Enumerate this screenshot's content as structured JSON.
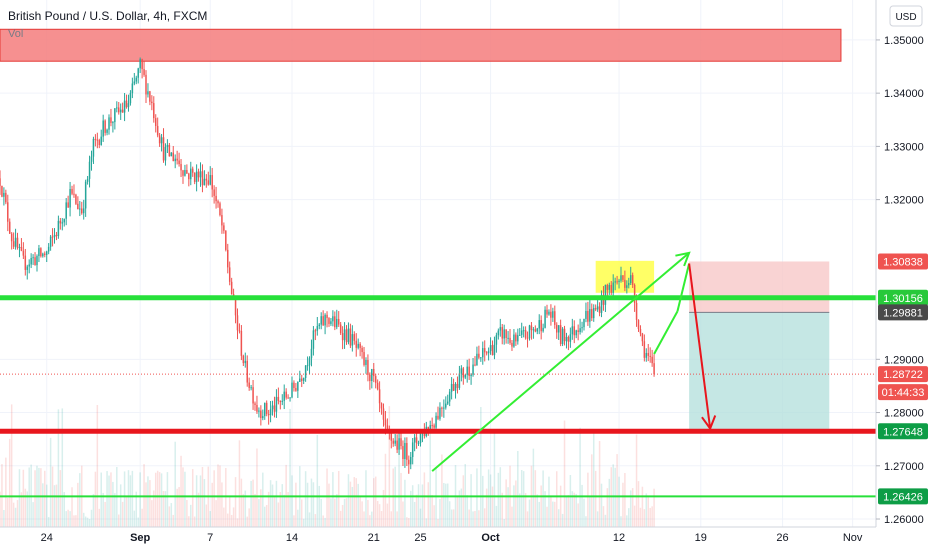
{
  "header": {
    "title": "British Pound / U.S. Dollar, 4h, FXCM",
    "volume_label": "Vol",
    "currency": "USD"
  },
  "colors": {
    "up": "#26a69a",
    "down": "#ef5350",
    "resistance_zone": "#f47c7c",
    "support_green": "#27e03a",
    "support_red": "#e8161d",
    "highlight_yellow": "#ffff33",
    "stop_zone": "#f8c8c8",
    "target_zone": "#b2dfdb",
    "arrow_green": "#33ee33",
    "arrow_red": "#e8161d",
    "grid": "#f0f3fa",
    "axis_bg": "#ffffff"
  },
  "chart_data": {
    "type": "candlestick",
    "symbol": "British Pound / U.S. Dollar",
    "interval": "4h",
    "source": "FXCM",
    "y_range": [
      1.2585,
      1.3575
    ],
    "y_ticks": [
      {
        "value": 1.35,
        "label": "1.35000"
      },
      {
        "value": 1.34,
        "label": "1.34000"
      },
      {
        "value": 1.33,
        "label": "1.33000"
      },
      {
        "value": 1.32,
        "label": "1.32000"
      },
      {
        "value": 1.29,
        "label": "1.29000"
      },
      {
        "value": 1.28,
        "label": "1.28000"
      },
      {
        "value": 1.27,
        "label": "1.27000"
      },
      {
        "value": 1.26,
        "label": "1.26000"
      }
    ],
    "x_range": [
      "2020-08-20",
      "2020-11-03"
    ],
    "x_ticks": [
      {
        "date": "2020-08-24",
        "label": "24",
        "bold": false
      },
      {
        "date": "2020-09-01",
        "label": "Sep",
        "bold": true
      },
      {
        "date": "2020-09-07",
        "label": "7",
        "bold": false
      },
      {
        "date": "2020-09-14",
        "label": "14",
        "bold": false
      },
      {
        "date": "2020-09-21",
        "label": "21",
        "bold": false
      },
      {
        "date": "2020-09-25",
        "label": "25",
        "bold": false
      },
      {
        "date": "2020-10-01",
        "label": "Oct",
        "bold": true
      },
      {
        "date": "2020-10-12",
        "label": "12",
        "bold": false
      },
      {
        "date": "2020-10-19",
        "label": "19",
        "bold": false
      },
      {
        "date": "2020-10-26",
        "label": "26",
        "bold": false
      },
      {
        "date": "2020-11-01",
        "label": "Nov",
        "bold": false
      }
    ],
    "price_path": [
      [
        "2020-08-20",
        1.324
      ],
      [
        "2020-08-21",
        1.313
      ],
      [
        "2020-08-22",
        1.308
      ],
      [
        "2020-08-24",
        1.31
      ],
      [
        "2020-08-25",
        1.315
      ],
      [
        "2020-08-26",
        1.321
      ],
      [
        "2020-08-27",
        1.318
      ],
      [
        "2020-08-28",
        1.33
      ],
      [
        "2020-08-29",
        1.334
      ],
      [
        "2020-08-31",
        1.338
      ],
      [
        "2020-09-01",
        1.345
      ],
      [
        "2020-09-02",
        1.338
      ],
      [
        "2020-09-03",
        1.329
      ],
      [
        "2020-09-04",
        1.328
      ],
      [
        "2020-09-05",
        1.325
      ],
      [
        "2020-09-07",
        1.324
      ],
      [
        "2020-09-08",
        1.315
      ],
      [
        "2020-09-09",
        1.3
      ],
      [
        "2020-09-10",
        1.288
      ],
      [
        "2020-09-11",
        1.281
      ],
      [
        "2020-09-12",
        1.28
      ],
      [
        "2020-09-14",
        1.284
      ],
      [
        "2020-09-15",
        1.288
      ],
      [
        "2020-09-16",
        1.295
      ],
      [
        "2020-09-17",
        1.298
      ],
      [
        "2020-09-18",
        1.296
      ],
      [
        "2020-09-19",
        1.294
      ],
      [
        "2020-09-21",
        1.286
      ],
      [
        "2020-09-22",
        1.276
      ],
      [
        "2020-09-23",
        1.274
      ],
      [
        "2020-09-24",
        1.272
      ],
      [
        "2020-09-25",
        1.276
      ],
      [
        "2020-09-26",
        1.278
      ],
      [
        "2020-09-28",
        1.286
      ],
      [
        "2020-09-29",
        1.288
      ],
      [
        "2020-09-30",
        1.29
      ],
      [
        "2020-10-01",
        1.292
      ],
      [
        "2020-10-02",
        1.295
      ],
      [
        "2020-10-03",
        1.293
      ],
      [
        "2020-10-05",
        1.296
      ],
      [
        "2020-10-06",
        1.299
      ],
      [
        "2020-10-07",
        1.294
      ],
      [
        "2020-10-08",
        1.295
      ],
      [
        "2020-10-09",
        1.298
      ],
      [
        "2020-10-10",
        1.299
      ],
      [
        "2020-10-11",
        1.303
      ],
      [
        "2020-10-12",
        1.305
      ],
      [
        "2020-10-13",
        1.305
      ],
      [
        "2020-10-14",
        1.293
      ],
      [
        "2020-10-15",
        1.2872
      ]
    ],
    "volume_base": 2,
    "price_tags": [
      {
        "value": 1.30838,
        "label": "1.30838",
        "color": "#ef5350"
      },
      {
        "value": 1.30156,
        "label": "1.30156",
        "color": "#27c93a"
      },
      {
        "value": 1.29881,
        "label": "1.29881",
        "color": "#4a4a4a"
      },
      {
        "value": 1.28722,
        "label": "1.28722",
        "color": "#ef5350"
      },
      {
        "value": 1.27648,
        "label": "1.27648",
        "color": "#0d9d46"
      },
      {
        "value": 1.26426,
        "label": "1.26426",
        "color": "#0d9d46"
      }
    ],
    "countdown": "01:44:33",
    "last_price": 1.28722,
    "zones": [
      {
        "name": "resistance",
        "from_date": "2020-08-20",
        "to_date": "2020-10-31",
        "low": 1.346,
        "high": 1.352
      },
      {
        "name": "highlight",
        "from_date": "2020-10-10",
        "to_date": "2020-10-15",
        "low": 1.3025,
        "high": 1.3085
      },
      {
        "name": "stop",
        "from_date": "2020-10-18",
        "to_date": "2020-10-30",
        "low": 1.29881,
        "high": 1.30838
      },
      {
        "name": "target",
        "from_date": "2020-10-18",
        "to_date": "2020-10-30",
        "low": 1.27648,
        "high": 1.29881
      }
    ],
    "horizontal_lines": [
      {
        "name": "support-green",
        "value": 1.30156,
        "color": "#27e03a",
        "width": 5
      },
      {
        "name": "support-red",
        "value": 1.27648,
        "color": "#e8161d",
        "width": 5
      },
      {
        "name": "support-thin-green",
        "value": 1.26426,
        "color": "#27e03a",
        "width": 2
      }
    ],
    "arrows": [
      {
        "name": "trend-up",
        "from": [
          "2020-09-26",
          1.269
        ],
        "to": [
          "2020-10-18",
          1.31
        ],
        "color": "#33ee33",
        "head": "open"
      },
      {
        "name": "retest-up",
        "from": [
          "2020-10-15",
          1.291
        ],
        "to": [
          "2020-10-17",
          1.299
        ],
        "color": "#33ee33",
        "head": "none"
      },
      {
        "name": "retest-up-2",
        "from": [
          "2020-10-17",
          1.299
        ],
        "to": [
          "2020-10-18",
          1.308
        ],
        "color": "#33ee33",
        "head": "none"
      },
      {
        "name": "target-down",
        "from": [
          "2020-10-18",
          1.308
        ],
        "to": [
          "2020-10-19.8",
          1.277
        ],
        "color": "#e8161d",
        "head": "open"
      }
    ]
  }
}
